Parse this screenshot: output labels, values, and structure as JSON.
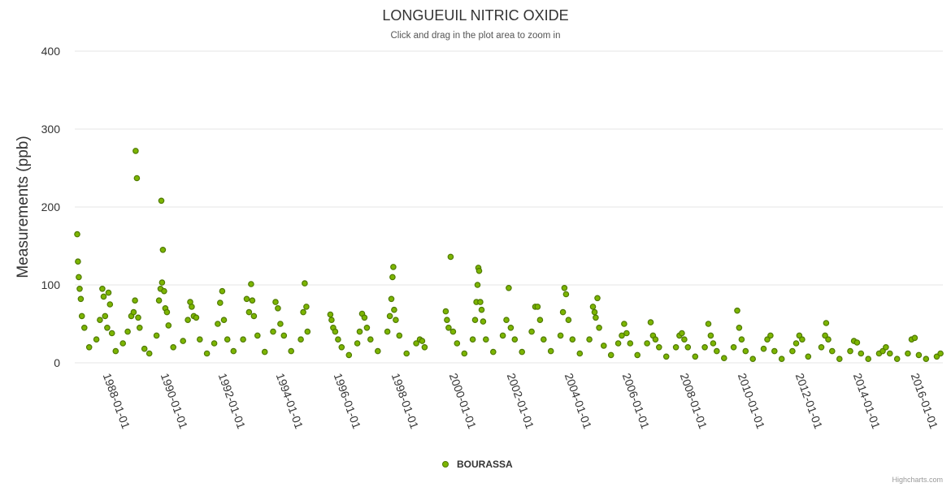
{
  "chart_data": {
    "type": "scatter",
    "title": "LONGUEUIL NITRIC OXIDE",
    "subtitle": "Click and drag in the plot area to zoom in",
    "ylabel": "Measurements (ppb)",
    "xlabel": "",
    "ylim": [
      0,
      400
    ],
    "yticks": [
      "0",
      "100",
      "200",
      "300",
      "400"
    ],
    "xlim": [
      "1986-12-01",
      "2016-12-31"
    ],
    "xticks": [
      "1988-01-01",
      "1990-01-01",
      "1992-01-01",
      "1994-01-01",
      "1996-01-01",
      "1998-01-01",
      "2000-01-01",
      "2002-01-01",
      "2004-01-01",
      "2006-01-01",
      "2008-01-01",
      "2010-01-01",
      "2012-01-01",
      "2014-01-01",
      "2016-01-01"
    ],
    "grid": true,
    "legend": "bottom-center",
    "series": [
      {
        "name": "BOURASSA",
        "color": "#7cb500",
        "edge_color": "#4f7a00",
        "points": [
          [
            "1987-01-01",
            165
          ],
          [
            "1987-01-10",
            130
          ],
          [
            "1987-01-20",
            110
          ],
          [
            "1987-02-01",
            95
          ],
          [
            "1987-02-15",
            82
          ],
          [
            "1987-03-01",
            60
          ],
          [
            "1987-04-01",
            45
          ],
          [
            "1987-06-01",
            20
          ],
          [
            "1987-09-01",
            30
          ],
          [
            "1987-10-15",
            55
          ],
          [
            "1987-11-15",
            95
          ],
          [
            "1987-12-01",
            85
          ],
          [
            "1987-12-20",
            60
          ],
          [
            "1988-01-15",
            45
          ],
          [
            "1988-02-01",
            90
          ],
          [
            "1988-02-20",
            75
          ],
          [
            "1988-03-15",
            38
          ],
          [
            "1988-05-01",
            15
          ],
          [
            "1988-08-01",
            25
          ],
          [
            "1988-10-01",
            40
          ],
          [
            "1988-11-15",
            60
          ],
          [
            "1988-12-15",
            65
          ],
          [
            "1989-01-01",
            80
          ],
          [
            "1989-01-10",
            272
          ],
          [
            "1989-01-25",
            237
          ],
          [
            "1989-02-10",
            58
          ],
          [
            "1989-03-01",
            45
          ],
          [
            "1989-05-01",
            18
          ],
          [
            "1989-07-01",
            12
          ],
          [
            "1989-10-01",
            35
          ],
          [
            "1989-11-01",
            80
          ],
          [
            "1989-11-20",
            95
          ],
          [
            "1989-12-01",
            208
          ],
          [
            "1989-12-10",
            103
          ],
          [
            "1989-12-20",
            145
          ],
          [
            "1990-01-05",
            92
          ],
          [
            "1990-01-20",
            70
          ],
          [
            "1990-02-10",
            65
          ],
          [
            "1990-03-01",
            48
          ],
          [
            "1990-05-01",
            20
          ],
          [
            "1990-09-01",
            28
          ],
          [
            "1990-11-01",
            55
          ],
          [
            "1990-12-01",
            78
          ],
          [
            "1990-12-20",
            72
          ],
          [
            "1991-01-15",
            60
          ],
          [
            "1991-02-15",
            58
          ],
          [
            "1991-04-01",
            30
          ],
          [
            "1991-07-01",
            12
          ],
          [
            "1991-10-01",
            25
          ],
          [
            "1991-11-15",
            50
          ],
          [
            "1991-12-15",
            77
          ],
          [
            "1992-01-10",
            92
          ],
          [
            "1992-02-01",
            55
          ],
          [
            "1992-03-15",
            30
          ],
          [
            "1992-06-01",
            15
          ],
          [
            "1992-10-01",
            30
          ],
          [
            "1992-11-15",
            82
          ],
          [
            "1992-12-15",
            65
          ],
          [
            "1993-01-10",
            101
          ],
          [
            "1993-01-25",
            80
          ],
          [
            "1993-02-15",
            60
          ],
          [
            "1993-04-01",
            35
          ],
          [
            "1993-07-01",
            14
          ],
          [
            "1993-10-15",
            40
          ],
          [
            "1993-11-15",
            78
          ],
          [
            "1993-12-15",
            70
          ],
          [
            "1994-01-15",
            50
          ],
          [
            "1994-03-01",
            35
          ],
          [
            "1994-06-01",
            15
          ],
          [
            "1994-10-01",
            30
          ],
          [
            "1994-11-01",
            65
          ],
          [
            "1994-11-20",
            102
          ],
          [
            "1994-12-10",
            72
          ],
          [
            "1994-12-25",
            40
          ],
          [
            "1995-10-10",
            62
          ],
          [
            "1995-10-25",
            55
          ],
          [
            "1995-11-15",
            45
          ],
          [
            "1995-12-10",
            40
          ],
          [
            "1996-01-15",
            30
          ],
          [
            "1996-03-01",
            20
          ],
          [
            "1996-06-01",
            10
          ],
          [
            "1996-09-15",
            25
          ],
          [
            "1996-10-15",
            40
          ],
          [
            "1996-11-15",
            63
          ],
          [
            "1996-12-15",
            58
          ],
          [
            "1997-01-15",
            45
          ],
          [
            "1997-03-01",
            30
          ],
          [
            "1997-06-01",
            15
          ],
          [
            "1997-10-01",
            40
          ],
          [
            "1997-11-01",
            60
          ],
          [
            "1997-11-20",
            82
          ],
          [
            "1997-12-05",
            110
          ],
          [
            "1997-12-15",
            123
          ],
          [
            "1997-12-25",
            68
          ],
          [
            "1998-01-15",
            55
          ],
          [
            "1998-03-01",
            35
          ],
          [
            "1998-06-01",
            12
          ],
          [
            "1998-10-01",
            25
          ],
          [
            "1998-11-15",
            30
          ],
          [
            "1998-12-15",
            28
          ],
          [
            "1999-01-15",
            20
          ],
          [
            "1999-10-10",
            66
          ],
          [
            "1999-10-25",
            55
          ],
          [
            "1999-11-15",
            45
          ],
          [
            "1999-12-10",
            136
          ],
          [
            "2000-01-10",
            40
          ],
          [
            "2000-03-01",
            25
          ],
          [
            "2000-06-01",
            12
          ],
          [
            "2000-09-15",
            30
          ],
          [
            "2000-10-15",
            55
          ],
          [
            "2000-11-01",
            78
          ],
          [
            "2000-11-15",
            100
          ],
          [
            "2000-11-25",
            122
          ],
          [
            "2000-12-05",
            118
          ],
          [
            "2000-12-20",
            78
          ],
          [
            "2001-01-05",
            68
          ],
          [
            "2001-01-25",
            53
          ],
          [
            "2001-03-01",
            30
          ],
          [
            "2001-06-01",
            14
          ],
          [
            "2001-10-01",
            35
          ],
          [
            "2001-11-15",
            55
          ],
          [
            "2001-12-15",
            96
          ],
          [
            "2002-01-10",
            45
          ],
          [
            "2002-03-01",
            30
          ],
          [
            "2002-06-01",
            14
          ],
          [
            "2002-10-01",
            40
          ],
          [
            "2002-11-15",
            72
          ],
          [
            "2002-12-15",
            72
          ],
          [
            "2003-01-15",
            55
          ],
          [
            "2003-03-01",
            30
          ],
          [
            "2003-06-01",
            15
          ],
          [
            "2003-10-01",
            35
          ],
          [
            "2003-11-01",
            65
          ],
          [
            "2003-11-20",
            96
          ],
          [
            "2003-12-10",
            88
          ],
          [
            "2004-01-10",
            55
          ],
          [
            "2004-03-01",
            30
          ],
          [
            "2004-06-01",
            12
          ],
          [
            "2004-10-01",
            30
          ],
          [
            "2004-11-15",
            72
          ],
          [
            "2004-12-05",
            65
          ],
          [
            "2004-12-20",
            58
          ],
          [
            "2005-01-10",
            83
          ],
          [
            "2005-02-01",
            45
          ],
          [
            "2005-04-01",
            22
          ],
          [
            "2005-07-01",
            10
          ],
          [
            "2005-10-01",
            25
          ],
          [
            "2005-11-15",
            35
          ],
          [
            "2005-12-15",
            50
          ],
          [
            "2006-01-15",
            38
          ],
          [
            "2006-03-01",
            25
          ],
          [
            "2006-06-01",
            10
          ],
          [
            "2006-10-01",
            25
          ],
          [
            "2006-11-15",
            52
          ],
          [
            "2006-12-15",
            35
          ],
          [
            "2007-01-15",
            30
          ],
          [
            "2007-03-01",
            20
          ],
          [
            "2007-06-01",
            8
          ],
          [
            "2007-10-01",
            20
          ],
          [
            "2007-11-15",
            35
          ],
          [
            "2007-12-15",
            38
          ],
          [
            "2008-01-15",
            30
          ],
          [
            "2008-03-01",
            20
          ],
          [
            "2008-06-01",
            8
          ],
          [
            "2008-10-01",
            20
          ],
          [
            "2008-11-15",
            50
          ],
          [
            "2008-12-15",
            35
          ],
          [
            "2009-01-15",
            25
          ],
          [
            "2009-03-01",
            15
          ],
          [
            "2009-06-01",
            6
          ],
          [
            "2009-10-01",
            20
          ],
          [
            "2009-11-15",
            67
          ],
          [
            "2009-12-10",
            45
          ],
          [
            "2010-01-10",
            30
          ],
          [
            "2010-03-01",
            15
          ],
          [
            "2010-06-01",
            5
          ],
          [
            "2010-10-15",
            18
          ],
          [
            "2010-12-01",
            30
          ],
          [
            "2011-01-10",
            35
          ],
          [
            "2011-03-01",
            15
          ],
          [
            "2011-06-01",
            5
          ],
          [
            "2011-10-15",
            15
          ],
          [
            "2011-12-01",
            25
          ],
          [
            "2012-01-10",
            35
          ],
          [
            "2012-02-15",
            30
          ],
          [
            "2012-05-01",
            8
          ],
          [
            "2012-10-15",
            20
          ],
          [
            "2012-12-01",
            35
          ],
          [
            "2012-12-15",
            51
          ],
          [
            "2013-01-10",
            30
          ],
          [
            "2013-03-01",
            15
          ],
          [
            "2013-06-01",
            5
          ],
          [
            "2013-10-15",
            15
          ],
          [
            "2013-12-01",
            28
          ],
          [
            "2014-01-10",
            26
          ],
          [
            "2014-03-01",
            12
          ],
          [
            "2014-06-01",
            5
          ],
          [
            "2014-10-15",
            12
          ],
          [
            "2014-12-01",
            15
          ],
          [
            "2015-01-10",
            20
          ],
          [
            "2015-03-01",
            12
          ],
          [
            "2015-06-01",
            5
          ],
          [
            "2015-10-15",
            12
          ],
          [
            "2015-12-01",
            30
          ],
          [
            "2016-01-10",
            32
          ],
          [
            "2016-03-01",
            10
          ],
          [
            "2016-06-01",
            5
          ],
          [
            "2016-10-15",
            8
          ],
          [
            "2016-12-01",
            12
          ]
        ]
      }
    ]
  },
  "credits": "Highcharts.com"
}
